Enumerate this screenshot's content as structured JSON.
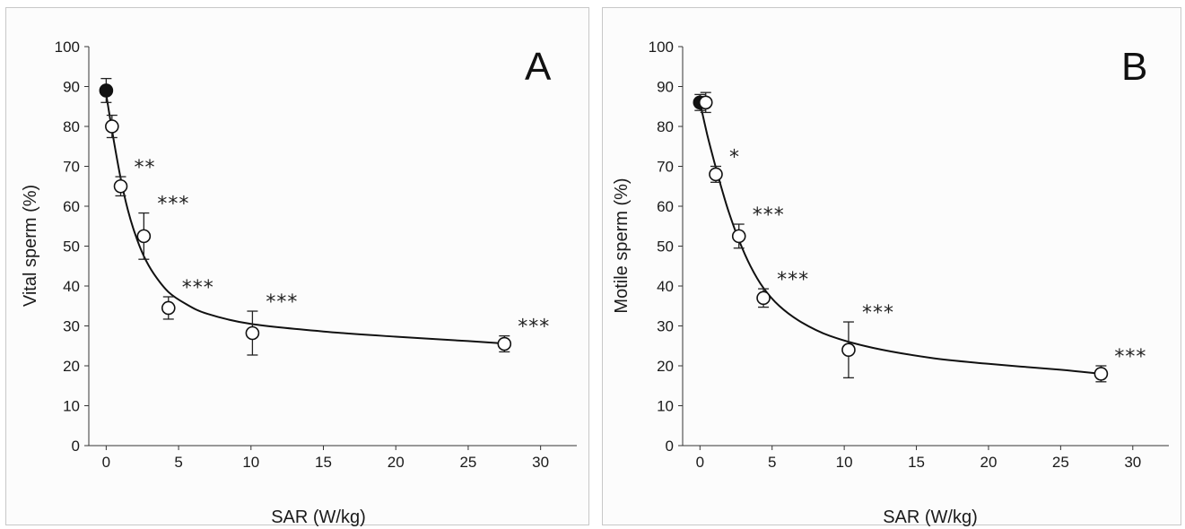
{
  "chart_data": [
    {
      "type": "scatter",
      "panel_label": "A",
      "xlabel": "SAR (W/kg)",
      "ylabel": "Vital sperm  (%)",
      "xlim": [
        -1.2,
        32.5
      ],
      "ylim": [
        0,
        100
      ],
      "x_ticks": [
        "0",
        "5",
        "10",
        "15",
        "20",
        "25",
        "30"
      ],
      "y_ticks": [
        "0",
        "10",
        "20",
        "30",
        "40",
        "50",
        "60",
        "70",
        "80",
        "90",
        "100"
      ],
      "grid": false,
      "fit_curve": true,
      "points": [
        {
          "x": 0,
          "y": 89,
          "err": 3,
          "filled": true,
          "sig": ""
        },
        {
          "x": 0.4,
          "y": 80,
          "err": 2.8,
          "filled": false,
          "sig": ""
        },
        {
          "x": 1,
          "y": 65,
          "err": 2.4,
          "filled": false,
          "sig": "**"
        },
        {
          "x": 2.6,
          "y": 52.5,
          "err": 5.8,
          "filled": false,
          "sig": "***"
        },
        {
          "x": 4.3,
          "y": 34.5,
          "err": 2.8,
          "filled": false,
          "sig": "***"
        },
        {
          "x": 10.1,
          "y": 28.2,
          "err": 5.5,
          "filled": false,
          "sig": "***"
        },
        {
          "x": 27.5,
          "y": 25.5,
          "err": 2,
          "filled": false,
          "sig": "***"
        }
      ],
      "fit": [
        {
          "x": 0,
          "y": 88
        },
        {
          "x": 0.5,
          "y": 77
        },
        {
          "x": 1,
          "y": 67
        },
        {
          "x": 1.5,
          "y": 59
        },
        {
          "x": 2,
          "y": 53
        },
        {
          "x": 2.6,
          "y": 47.5
        },
        {
          "x": 3.3,
          "y": 43
        },
        {
          "x": 4.3,
          "y": 38.5
        },
        {
          "x": 5.5,
          "y": 35.5
        },
        {
          "x": 7,
          "y": 33
        },
        {
          "x": 10,
          "y": 30.5
        },
        {
          "x": 15,
          "y": 28.6
        },
        {
          "x": 20,
          "y": 27.3
        },
        {
          "x": 25,
          "y": 26.2
        },
        {
          "x": 27.5,
          "y": 25.6
        }
      ]
    },
    {
      "type": "scatter",
      "panel_label": "B",
      "xlabel": "SAR (W/kg)",
      "ylabel": "Motile sperm  (%)",
      "xlim": [
        -1.2,
        32.5
      ],
      "ylim": [
        0,
        100
      ],
      "x_ticks": [
        "0",
        "5",
        "10",
        "15",
        "20",
        "25",
        "30"
      ],
      "y_ticks": [
        "0",
        "10",
        "20",
        "30",
        "40",
        "50",
        "60",
        "70",
        "80",
        "90",
        "100"
      ],
      "grid": false,
      "fit_curve": true,
      "points": [
        {
          "x": 0,
          "y": 86,
          "err": 2,
          "filled": true,
          "sig": ""
        },
        {
          "x": 0.4,
          "y": 86,
          "err": 2.5,
          "filled": false,
          "sig": ""
        },
        {
          "x": 1.1,
          "y": 68,
          "err": 2,
          "filled": false,
          "sig": "*"
        },
        {
          "x": 2.7,
          "y": 52.5,
          "err": 3,
          "filled": false,
          "sig": "***"
        },
        {
          "x": 4.4,
          "y": 37,
          "err": 2.3,
          "filled": false,
          "sig": "***"
        },
        {
          "x": 10.3,
          "y": 24,
          "err": 7,
          "filled": false,
          "sig": "***"
        },
        {
          "x": 27.8,
          "y": 18,
          "err": 2,
          "filled": false,
          "sig": "***"
        }
      ],
      "fit": [
        {
          "x": 0,
          "y": 86
        },
        {
          "x": 0.5,
          "y": 78
        },
        {
          "x": 1,
          "y": 71
        },
        {
          "x": 1.5,
          "y": 64.5
        },
        {
          "x": 2,
          "y": 58.5
        },
        {
          "x": 2.7,
          "y": 51.5
        },
        {
          "x": 3.5,
          "y": 45
        },
        {
          "x": 4.4,
          "y": 39.5
        },
        {
          "x": 5.5,
          "y": 35
        },
        {
          "x": 7,
          "y": 31
        },
        {
          "x": 9,
          "y": 27.5
        },
        {
          "x": 12,
          "y": 24.5
        },
        {
          "x": 16,
          "y": 22
        },
        {
          "x": 20,
          "y": 20.5
        },
        {
          "x": 25,
          "y": 19
        },
        {
          "x": 27.8,
          "y": 18
        }
      ]
    }
  ]
}
